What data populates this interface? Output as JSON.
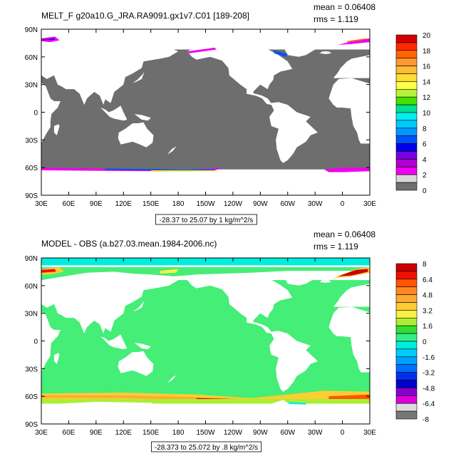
{
  "chart_data": [
    {
      "type": "heatmap",
      "title": "MELT_F g20a10.G_JRA.RA9091.gx1v7.C01 [189-208]",
      "stats": {
        "mean": "mean = 0.06408",
        "rms": "rms = 1.119"
      },
      "range_label": "-28.37 to 25.07 by 1 kg/m^2/s",
      "x_ticks": [
        "30E",
        "60E",
        "90E",
        "120E",
        "150E",
        "180",
        "150W",
        "120W",
        "90W",
        "60W",
        "30W",
        "0",
        "30E"
      ],
      "y_ticks": [
        "90N",
        "60N",
        "30N",
        "0",
        "30S",
        "60S",
        "90S"
      ],
      "colorbar_labels": [
        "20",
        "18",
        "16",
        "14",
        "12",
        "10",
        "8",
        "6",
        "4",
        "2",
        "0"
      ],
      "colorbar_colors": [
        "#d40000",
        "#ff2a00",
        "#ff6600",
        "#ff9933",
        "#ffbb33",
        "#ffdd33",
        "#ffff44",
        "#b8f23c",
        "#44e000",
        "#00e090",
        "#00f0ee",
        "#00c8ff",
        "#0096ff",
        "#0050ff",
        "#0000ee",
        "#7a00e0",
        "#b000d0",
        "#f000f0",
        "#d8d8d8",
        "#6e6e6e"
      ],
      "land_color": "#6e6e6e",
      "ocean_color": "#ffffff",
      "xlim": [
        30,
        390
      ],
      "ylim": [
        -90,
        90
      ]
    },
    {
      "type": "heatmap",
      "title": "MODEL - OBS (a.b27.03.mean.1984-2006.nc)",
      "stats": {
        "mean": "mean = 0.06408",
        "rms": "rms = 1.119"
      },
      "range_label": "-28.373 to 25.072 by .8 kg/m^2/s",
      "x_ticks": [
        "30E",
        "60E",
        "90E",
        "120E",
        "150E",
        "180",
        "150W",
        "120W",
        "90W",
        "60W",
        "30W",
        "0",
        "30E"
      ],
      "y_ticks": [
        "90N",
        "60N",
        "30N",
        "0",
        "30S",
        "60S",
        "90S"
      ],
      "colorbar_labels": [
        "8",
        "6.4",
        "4.8",
        "3.2",
        "1.6",
        "0",
        "-1.6",
        "-3.2",
        "-4.8",
        "-6.4",
        "-8"
      ],
      "colorbar_colors": [
        "#c80000",
        "#ee1100",
        "#ff5500",
        "#ff8822",
        "#ffaa33",
        "#ffcc33",
        "#ffee44",
        "#aaee33",
        "#33dd33",
        "#33ee88",
        "#00eedd",
        "#00ccff",
        "#00a0ff",
        "#0070ff",
        "#0030ee",
        "#0000cc",
        "#8800cc",
        "#dd00dd",
        "#dddddd",
        "#777777"
      ],
      "field_color": "#44ee77",
      "ocean_color": "#ffffff",
      "xlim": [
        30,
        390
      ],
      "ylim": [
        -90,
        90
      ]
    }
  ]
}
